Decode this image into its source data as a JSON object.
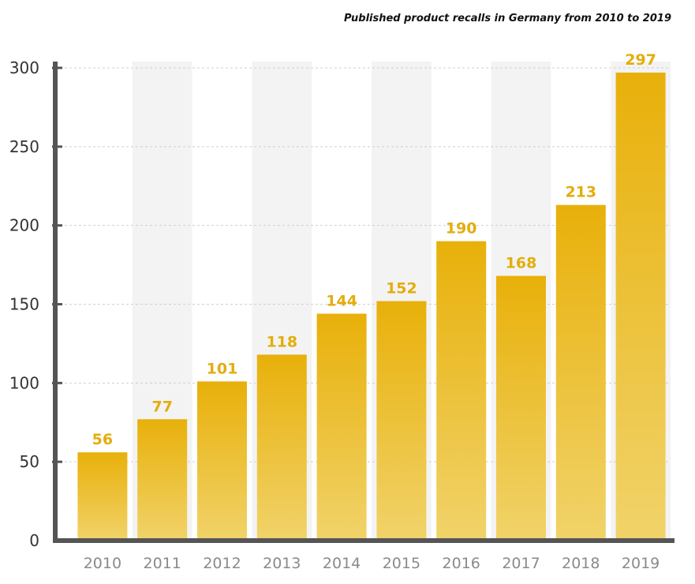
{
  "title": "Published product recalls in Germany from 2010 to 2019",
  "colors": {
    "bar_top": "#e8b00a",
    "bar_bottom": "#f1d36a",
    "value_label": "#e3ad0c",
    "axis": "#555555",
    "band": "#f3f3f3"
  },
  "chart_data": {
    "type": "bar",
    "title": "Published product recalls in Germany from 2010 to 2019",
    "xlabel": "",
    "ylabel": "",
    "categories": [
      "2010",
      "2011",
      "2012",
      "2013",
      "2014",
      "2015",
      "2016",
      "2017",
      "2018",
      "2019"
    ],
    "values": [
      56,
      77,
      101,
      118,
      144,
      152,
      190,
      168,
      213,
      297
    ],
    "ylim": [
      0,
      300
    ],
    "yticks": [
      0,
      50,
      100,
      150,
      200,
      250,
      300
    ],
    "grid": true,
    "data_labels": true
  }
}
